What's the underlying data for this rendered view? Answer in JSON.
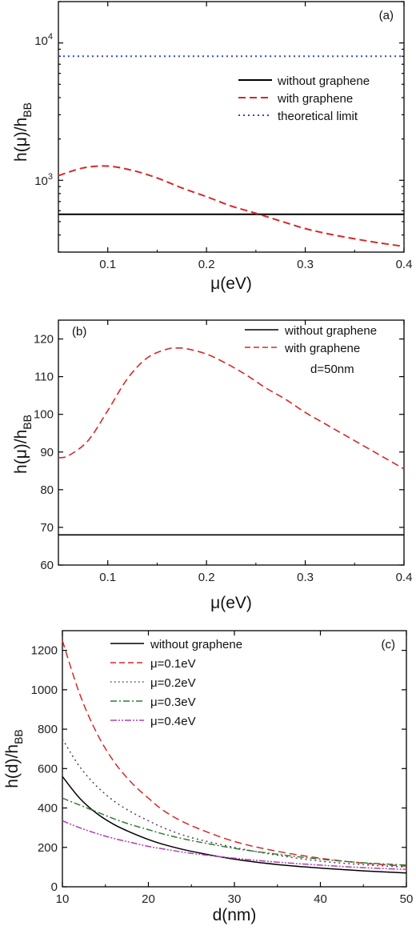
{
  "chart_data": [
    {
      "panel_label": "(a)",
      "type": "line",
      "xlabel": "μ(eV)",
      "ylabel_main": "h(μ)/h",
      "ylabel_sub": "BB",
      "xlim": [
        0.05,
        0.4
      ],
      "ylim": [
        300,
        20000
      ],
      "y_scale": "log",
      "x_ticks": [
        0.1,
        0.2,
        0.3,
        0.4
      ],
      "x_tick_labels": [
        "0.1",
        "0.2",
        "0.3",
        "0.4"
      ],
      "y_ticks_major": [
        1000,
        10000
      ],
      "legend_position": "top-right",
      "series": [
        {
          "name": "without graphene",
          "color": "#000000",
          "dash": "solid",
          "x": [
            0.05,
            0.4
          ],
          "y": [
            565,
            565
          ]
        },
        {
          "name": "with graphene",
          "color": "#d62728",
          "dash": "dashed",
          "x": [
            0.05,
            0.075,
            0.1,
            0.125,
            0.15,
            0.175,
            0.2,
            0.225,
            0.25,
            0.275,
            0.3,
            0.325,
            0.35,
            0.375,
            0.4
          ],
          "y": [
            1080,
            1230,
            1270,
            1180,
            1040,
            880,
            760,
            650,
            575,
            505,
            445,
            405,
            375,
            350,
            330
          ]
        },
        {
          "name": "theoretical limit",
          "color": "#3344cc",
          "dash": "dotted",
          "x": [
            0.05,
            0.4
          ],
          "y": [
            8000,
            8000
          ]
        }
      ]
    },
    {
      "panel_label": "(b)",
      "type": "line",
      "xlabel": "μ(eV)",
      "ylabel_main": "h(μ)/h",
      "ylabel_sub": "BB",
      "xlim": [
        0.05,
        0.4
      ],
      "ylim": [
        60,
        125
      ],
      "x_ticks": [
        0.1,
        0.2,
        0.3,
        0.4
      ],
      "x_tick_labels": [
        "0.1",
        "0.2",
        "0.3",
        "0.4"
      ],
      "y_ticks": [
        60,
        70,
        80,
        90,
        100,
        110,
        120
      ],
      "annotation": "d=50nm",
      "legend_position": "top-right",
      "series": [
        {
          "name": "without graphene",
          "color": "#000000",
          "dash": "solid",
          "x": [
            0.05,
            0.4
          ],
          "y": [
            68,
            68
          ]
        },
        {
          "name": "with graphene",
          "color": "#d62728",
          "dash": "dashed",
          "x": [
            0.05,
            0.06,
            0.08,
            0.1,
            0.12,
            0.14,
            0.16,
            0.17,
            0.18,
            0.2,
            0.22,
            0.24,
            0.26,
            0.28,
            0.3,
            0.32,
            0.34,
            0.36,
            0.38,
            0.4
          ],
          "y": [
            88.5,
            89,
            93,
            101,
            109.5,
            115,
            117.3,
            117.6,
            117.4,
            116,
            113.5,
            110.5,
            107,
            104,
            100.5,
            97.5,
            94.5,
            91.5,
            88.5,
            85.5
          ]
        }
      ]
    },
    {
      "panel_label": "(c)",
      "type": "line",
      "xlabel": "d(nm)",
      "ylabel_main": "h(d)/h",
      "ylabel_sub": "BB",
      "xlim": [
        10,
        50
      ],
      "ylim": [
        0,
        1300
      ],
      "x_ticks": [
        10,
        20,
        30,
        40,
        50
      ],
      "x_tick_labels": [
        "10",
        "20",
        "30",
        "40",
        "50"
      ],
      "y_ticks": [
        0,
        200,
        400,
        600,
        800,
        1000,
        1200
      ],
      "legend_position": "top-left",
      "series": [
        {
          "name": "without graphene",
          "color": "#000000",
          "dash": "solid",
          "x": [
            10,
            12,
            14,
            16,
            18,
            20,
            22,
            25,
            30,
            35,
            40,
            45,
            50
          ],
          "y": [
            560,
            450,
            372,
            316,
            275,
            240,
            212,
            180,
            140,
            113,
            95,
            81,
            70
          ]
        },
        {
          "name": "μ=0.1eV",
          "color": "#d62728",
          "dash": "dashed",
          "x": [
            10,
            12,
            14,
            16,
            18,
            20,
            22,
            25,
            30,
            35,
            40,
            45,
            50
          ],
          "y": [
            1250,
            980,
            780,
            635,
            530,
            450,
            380,
            310,
            230,
            180,
            145,
            120,
            105
          ]
        },
        {
          "name": "μ=0.2eV",
          "color": "#5a3d6e",
          "dash": "dotted",
          "x": [
            10,
            12,
            14,
            16,
            18,
            20,
            22,
            25,
            30,
            35,
            40,
            45,
            50
          ],
          "y": [
            750,
            610,
            510,
            435,
            380,
            335,
            295,
            250,
            200,
            160,
            130,
            112,
            100
          ]
        },
        {
          "name": "μ=0.3eV",
          "color": "#2e7d32",
          "dash": "dashdot",
          "x": [
            10,
            12,
            14,
            16,
            18,
            20,
            22,
            25,
            30,
            35,
            40,
            45,
            50
          ],
          "y": [
            450,
            415,
            380,
            345,
            315,
            290,
            265,
            235,
            195,
            165,
            140,
            122,
            110
          ]
        },
        {
          "name": "μ=0.4eV",
          "color": "#b040b0",
          "dash": "dashdotdot",
          "x": [
            10,
            12,
            14,
            16,
            18,
            20,
            22,
            25,
            30,
            35,
            40,
            45,
            50
          ],
          "y": [
            335,
            300,
            270,
            245,
            225,
            205,
            190,
            170,
            145,
            125,
            110,
            97,
            88
          ]
        }
      ]
    }
  ]
}
